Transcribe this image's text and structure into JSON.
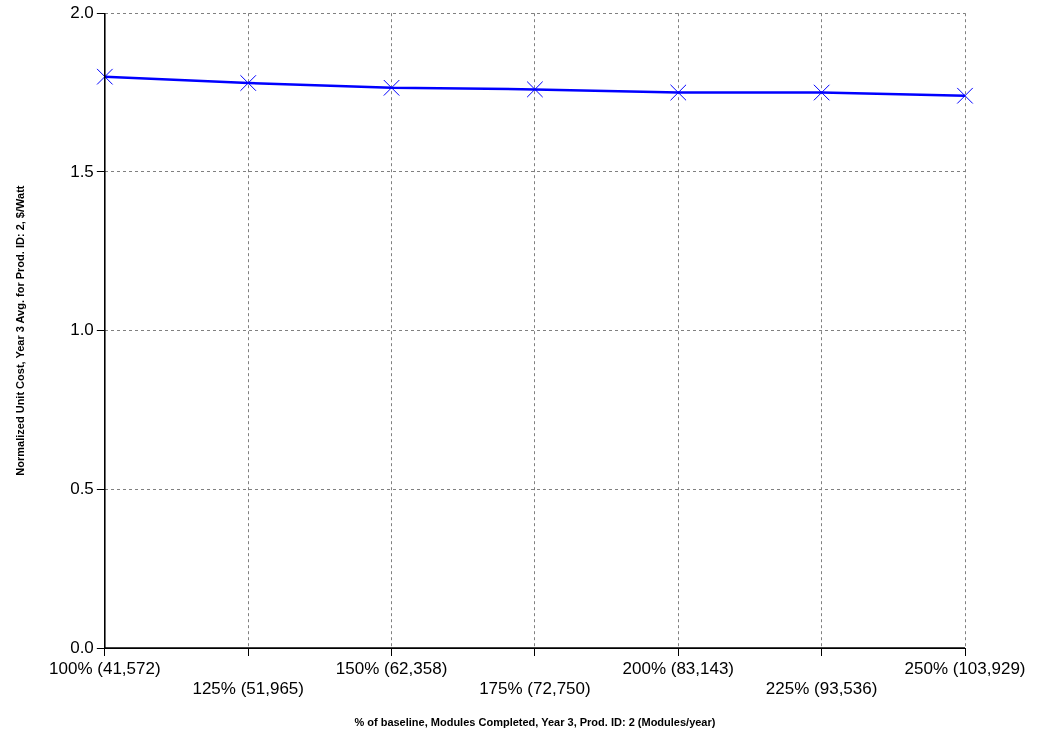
{
  "chart_data": {
    "type": "line",
    "xlabel": "% of baseline, Modules Completed, Year 3, Prod. ID: 2 (Modules/year)",
    "ylabel": "Normalized Unit Cost, Year 3 Avg. for Prod. ID: 2, $/Watt",
    "categories": [
      "100% (41,572)",
      "125% (51,965)",
      "150% (62,358)",
      "175% (72,750)",
      "200% (83,143)",
      "225% (93,536)",
      "250% (103,929)"
    ],
    "series": [
      {
        "color": "#0000ff",
        "values": [
          1.8,
          1.78,
          1.765,
          1.76,
          1.75,
          1.75,
          1.74
        ]
      }
    ],
    "ylim": [
      0,
      2
    ],
    "yticks": [
      {
        "value": 0,
        "label": "0.0"
      },
      {
        "value": 0.5,
        "label": "0.5"
      },
      {
        "value": 1,
        "label": "1.0"
      },
      {
        "value": 1.5,
        "label": "1.5"
      },
      {
        "value": 2,
        "label": "2.0"
      }
    ],
    "grid": true,
    "legend": false,
    "marker": "cross",
    "line_style": "solid"
  }
}
